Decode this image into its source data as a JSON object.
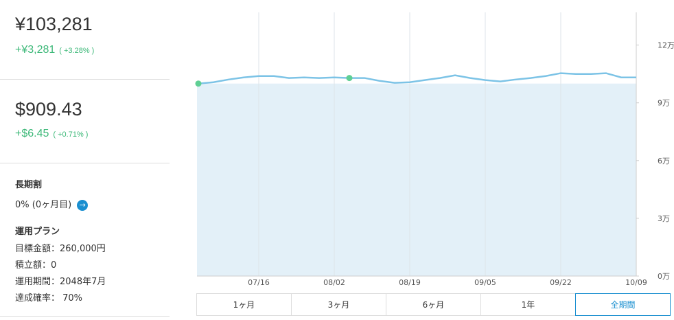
{
  "summary": {
    "jpy": {
      "value": "¥103,281",
      "change": "+¥3,281",
      "change_pct": "( +3.28% )"
    },
    "usd": {
      "value": "$909.43",
      "change": "+$6.45",
      "change_pct": "( +0.71% )"
    }
  },
  "discount": {
    "title": "長期割",
    "value": "0% (0ヶ月目)"
  },
  "plan": {
    "title": "運用プラン",
    "items": [
      "目標金額：260,000円",
      "積立額：0",
      "運用期間：2048年7月",
      "達成確率： 70%"
    ]
  },
  "periods": {
    "options": [
      "1ヶ月",
      "3ヶ月",
      "6ヶ月",
      "1年",
      "全期間"
    ],
    "selected": 4
  },
  "chart_data": {
    "type": "line",
    "categories": [
      null,
      null,
      null,
      null,
      "07/16",
      null,
      null,
      null,
      null,
      "08/02",
      null,
      null,
      null,
      null,
      "08/19",
      null,
      null,
      null,
      null,
      "09/05",
      null,
      null,
      null,
      null,
      "09/22",
      null,
      null,
      null,
      null,
      "10/09"
    ],
    "series": [
      {
        "color": "#7cc3e6",
        "values": [
          100000,
          100700,
          102100,
          103200,
          103900,
          103900,
          102900,
          103200,
          102900,
          103200,
          102900,
          102900,
          101400,
          100400,
          100700,
          101800,
          102900,
          104300,
          102900,
          101800,
          101100,
          102100,
          102900,
          103900,
          105400,
          105000,
          105000,
          105400,
          103200,
          103200
        ]
      }
    ],
    "highlight_points": [
      0,
      10
    ],
    "highlight_color": "#5fcf94",
    "area_color": "#e3f0f8",
    "ylim": [
      0,
      137000
    ],
    "yticks": [
      {
        "value": 0,
        "label": "0万"
      },
      {
        "value": 30000,
        "label": "3万"
      },
      {
        "value": 60000,
        "label": "6万"
      },
      {
        "value": 90000,
        "label": "9万"
      },
      {
        "value": 120000,
        "label": "12万"
      }
    ],
    "grid": true
  }
}
